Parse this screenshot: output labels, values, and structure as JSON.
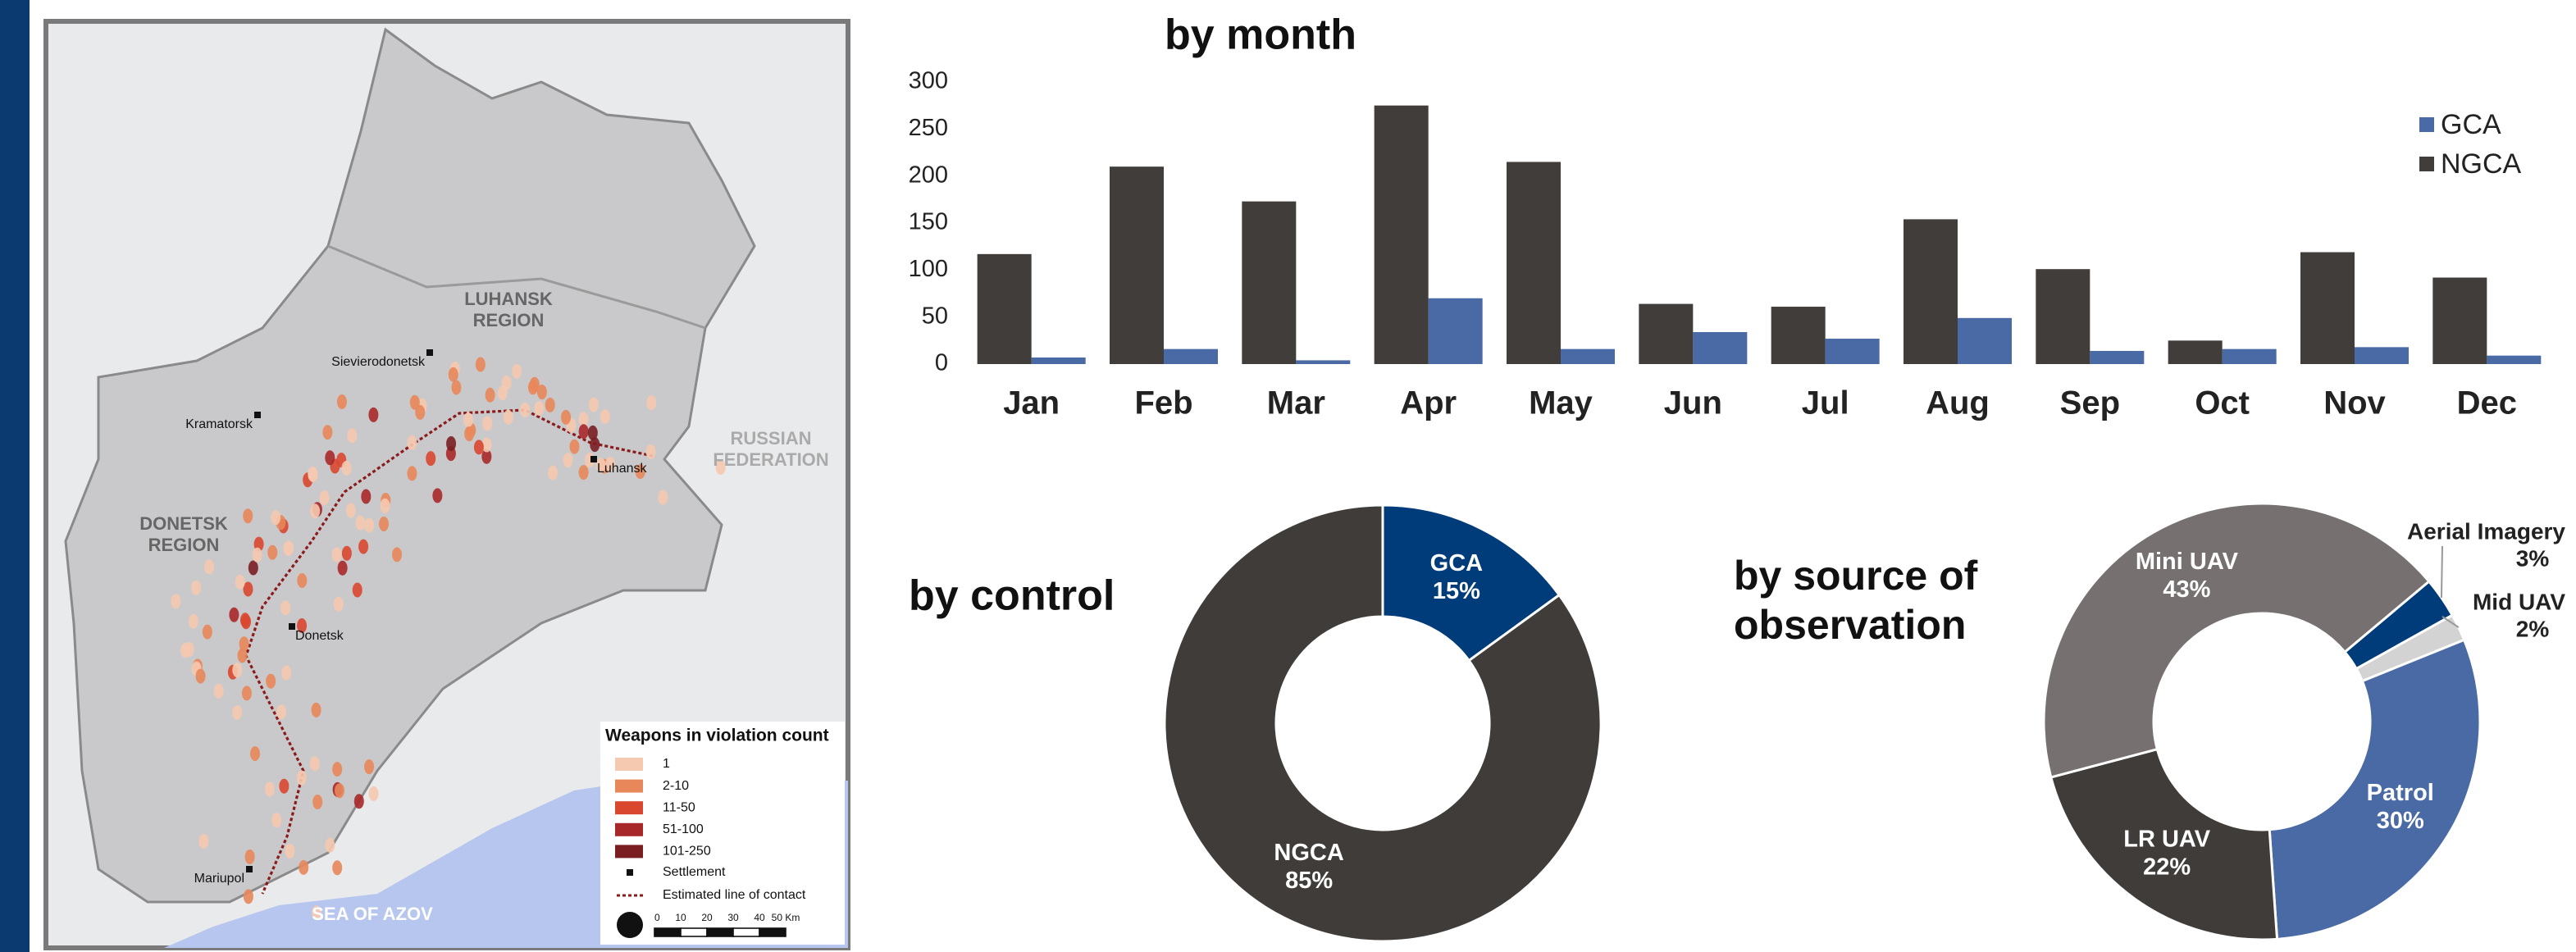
{
  "chart_data": [
    {
      "type": "bar",
      "title": "by month",
      "categories": [
        "Jan",
        "Feb",
        "Mar",
        "Apr",
        "May",
        "Jun",
        "Jul",
        "Aug",
        "Sep",
        "Oct",
        "Nov",
        "Dec"
      ],
      "series": [
        {
          "name": "GCA",
          "color": "#4a6aa5",
          "values": [
            7,
            16,
            4,
            70,
            16,
            34,
            27,
            49,
            14,
            16,
            18,
            9
          ]
        },
        {
          "name": "NGCA",
          "color": "#403d3b",
          "values": [
            117,
            210,
            173,
            275,
            215,
            64,
            61,
            154,
            101,
            25,
            119,
            92
          ]
        }
      ],
      "ylim": [
        0,
        300
      ],
      "yticks": [
        0,
        50,
        100,
        150,
        200,
        250,
        300
      ],
      "grid": false,
      "legend": "upper right"
    },
    {
      "type": "donut",
      "title": "by control",
      "startangle": 0,
      "categories": [
        "GCA",
        "NGCA"
      ],
      "values": [
        15,
        85
      ],
      "value_labels": [
        "15%",
        "85%"
      ],
      "colors": [
        "#003b7a",
        "#3f3c3a"
      ]
    },
    {
      "type": "donut",
      "title": "by source of observation",
      "startangle": 50,
      "categories": [
        "Aerial Imagery",
        "Mid UAV",
        "Patrol",
        "LR UAV",
        "Mini UAV"
      ],
      "values": [
        3,
        2,
        30,
        22,
        43
      ],
      "value_labels": [
        "3%",
        "2%",
        "30%",
        "22%",
        "43%"
      ],
      "colors": [
        "#003b7a",
        "#d3d3d3",
        "#4a6aa5",
        "#3f3c3a",
        "#767170"
      ]
    }
  ],
  "map": {
    "regions": [
      [
        "LUHANSK",
        "REGION"
      ],
      [
        "DONETSK",
        "REGION"
      ],
      [
        "RUSSIAN",
        "FEDERATION"
      ]
    ],
    "sea": "SEA OF AZOV",
    "settlements": [
      "Sievierodonetsk",
      "Kramatorsk",
      "Luhansk",
      "Donetsk",
      "Mariupol"
    ],
    "legend": {
      "title": "Weapons in violation count",
      "classes": [
        {
          "label": "1",
          "color": "#f5c9b0"
        },
        {
          "label": "2-10",
          "color": "#e8875a"
        },
        {
          "label": "11-50",
          "color": "#d9472f"
        },
        {
          "label": "51-100",
          "color": "#a8282a"
        },
        {
          "label": "101-250",
          "color": "#7a1e22"
        }
      ],
      "settlement": "Settlement",
      "line": "Estimated line of contact"
    },
    "scale": [
      "0",
      "10",
      "20",
      "30",
      "40",
      "50 Km"
    ]
  }
}
